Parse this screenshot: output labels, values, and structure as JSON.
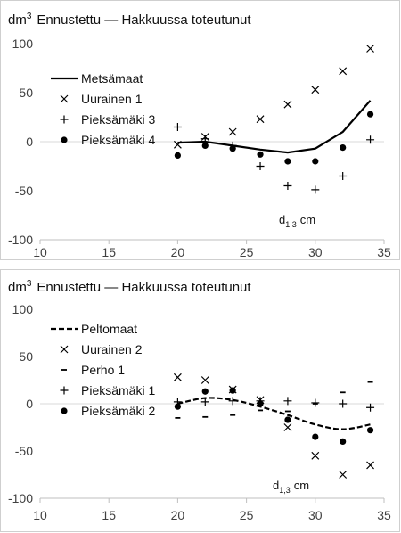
{
  "chart_data": [
    {
      "type": "scatter",
      "title_unit": "dm",
      "title_exp": "3",
      "title_text": "Ennustettu — Hakkuussa toteutunut",
      "annotation_main": "d",
      "annotation_sub": "1,3",
      "annotation_unit": "cm",
      "xlim": [
        10,
        35
      ],
      "ylim": [
        -100,
        100
      ],
      "x_ticks": [
        "10",
        "15",
        "20",
        "25",
        "30",
        "35"
      ],
      "y_ticks": [
        "100",
        "50",
        "0",
        "-50",
        "-100"
      ],
      "series": [
        {
          "name": "Metsämaat",
          "marker": "line-solid",
          "x": [
            20,
            22,
            24,
            26,
            28,
            30,
            32,
            34
          ],
          "y": [
            -1,
            0,
            -4,
            -8,
            -11,
            -7,
            10,
            42
          ]
        },
        {
          "name": "Uurainen 1",
          "marker": "x",
          "x": [
            20,
            22,
            24,
            26,
            28,
            30,
            32,
            34
          ],
          "y": [
            -3,
            5,
            10,
            23,
            38,
            53,
            72,
            95
          ]
        },
        {
          "name": "Pieksämäki 3",
          "marker": "plus",
          "x": [
            20,
            22,
            24,
            26,
            28,
            30,
            32,
            34
          ],
          "y": [
            15,
            3,
            -4,
            -25,
            -45,
            -49,
            -35,
            2
          ]
        },
        {
          "name": "Pieksämäki 4",
          "marker": "dot",
          "x": [
            20,
            22,
            24,
            26,
            28,
            30,
            32,
            34
          ],
          "y": [
            -14,
            -4,
            -7,
            -13,
            -20,
            -20,
            -6,
            28
          ]
        }
      ]
    },
    {
      "type": "scatter",
      "title_unit": "dm",
      "title_exp": "3",
      "title_text": "Ennustettu — Hakkuussa toteutunut",
      "annotation_main": "d",
      "annotation_sub": "1,3",
      "annotation_unit": "cm",
      "xlim": [
        10,
        35
      ],
      "ylim": [
        -100,
        100
      ],
      "x_ticks": [
        "10",
        "15",
        "20",
        "25",
        "30",
        "35"
      ],
      "y_ticks": [
        "100",
        "50",
        "0",
        "-50",
        "-100"
      ],
      "series": [
        {
          "name": "Peltomaat",
          "marker": "line-dashed",
          "x": [
            20,
            22,
            24,
            26,
            28,
            30,
            32,
            34
          ],
          "y": [
            0,
            6,
            4,
            -3,
            -12,
            -22,
            -27,
            -22
          ]
        },
        {
          "name": "Uurainen 2",
          "marker": "x",
          "x": [
            20,
            22,
            24,
            26,
            28,
            30,
            32,
            34
          ],
          "y": [
            28,
            25,
            15,
            4,
            -25,
            -55,
            -75,
            -65
          ]
        },
        {
          "name": "Perho 1",
          "marker": "dash",
          "x": [
            20,
            22,
            24,
            26,
            28,
            30,
            32,
            34
          ],
          "y": [
            -15,
            -14,
            -12,
            -7,
            -8,
            0,
            12,
            23
          ]
        },
        {
          "name": "Pieksämäki 1",
          "marker": "plus",
          "x": [
            20,
            22,
            24,
            26,
            28,
            30,
            32,
            34
          ],
          "y": [
            2,
            2,
            3,
            3,
            3,
            1,
            0,
            -4
          ]
        },
        {
          "name": "Pieksämäki 2",
          "marker": "dot",
          "x": [
            20,
            22,
            24,
            26,
            28,
            30,
            32,
            34
          ],
          "y": [
            -3,
            13,
            14,
            0,
            -17,
            -35,
            -40,
            -28
          ]
        }
      ]
    }
  ]
}
